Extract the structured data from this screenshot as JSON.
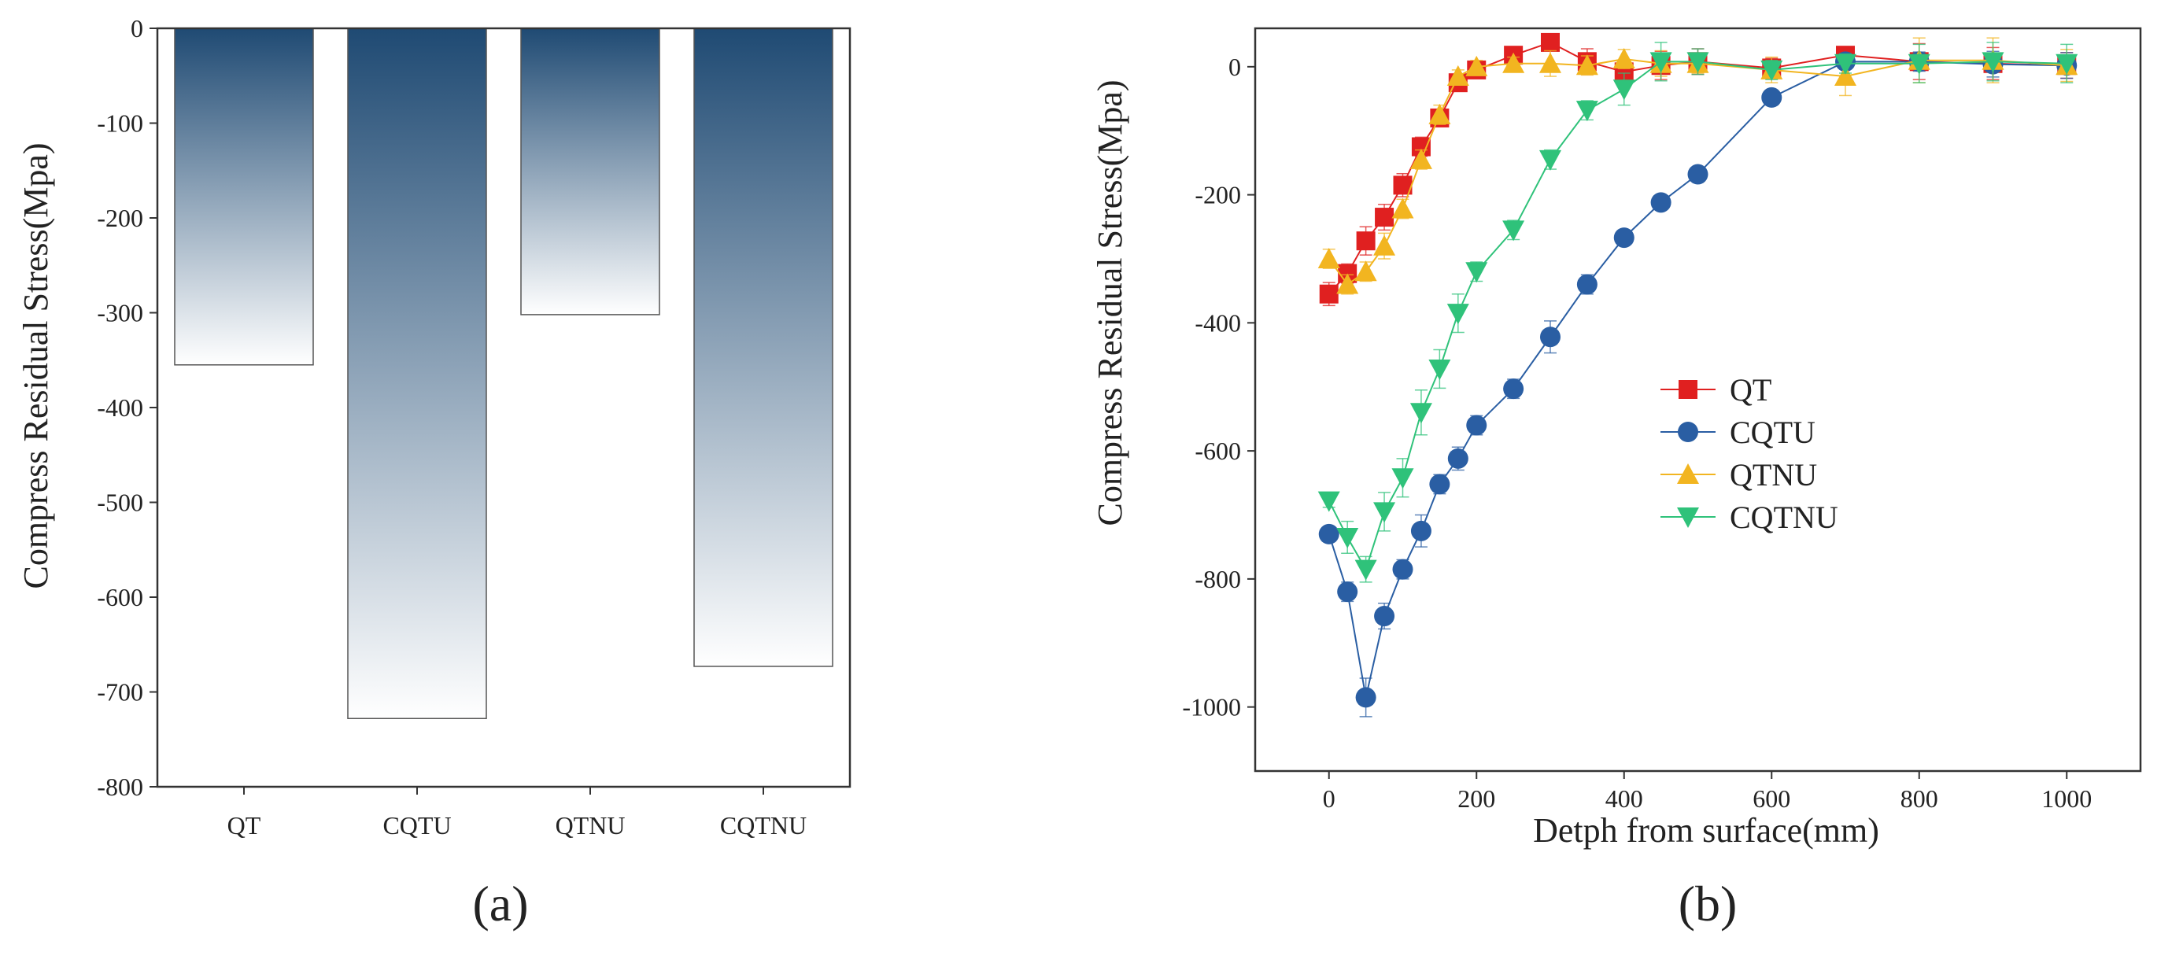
{
  "chart_data": [
    {
      "type": "bar",
      "panel_label": "(a)",
      "categories": [
        "QT",
        "CQTU",
        "QTNU",
        "CQTNU"
      ],
      "values": [
        -355,
        -728,
        -302,
        -673
      ],
      "ylabel": "Compress Residual Stress(Mpa)",
      "xlabel": "",
      "ylim": [
        -800,
        0
      ],
      "yticks": [
        0,
        -100,
        -200,
        -300,
        -400,
        -500,
        -600,
        -700,
        -800
      ],
      "fill_gradient": [
        "#1f4a73",
        "#ffffff"
      ],
      "grid": false
    },
    {
      "type": "line",
      "panel_label": "(b)",
      "xlabel": "Detph from surface(mm)",
      "ylabel": "Compress Residual Stress(Mpa)",
      "xlim": [
        -100,
        1100
      ],
      "ylim": [
        -1100,
        60
      ],
      "xticks": [
        0,
        200,
        400,
        600,
        800,
        1000
      ],
      "yticks": [
        0,
        -200,
        -400,
        -600,
        -800,
        -1000
      ],
      "grid": false,
      "legend_position": "center-right",
      "series": [
        {
          "name": "QT",
          "marker": "square",
          "color": "#e02020",
          "x": [
            0,
            25,
            50,
            75,
            100,
            125,
            150,
            175,
            200,
            250,
            300,
            350,
            400,
            450,
            500,
            600,
            700,
            800,
            900,
            1000
          ],
          "y": [
            -355,
            -323,
            -272,
            -235,
            -185,
            -125,
            -80,
            -25,
            -5,
            18,
            38,
            8,
            -8,
            2,
            8,
            -2,
            18,
            8,
            5,
            2
          ],
          "err": [
            18,
            15,
            22,
            20,
            18,
            15,
            12,
            12,
            8,
            8,
            10,
            20,
            15,
            22,
            20,
            15,
            12,
            28,
            25,
            20
          ]
        },
        {
          "name": "CQTU",
          "marker": "circle",
          "color": "#2a5ea3",
          "x": [
            0,
            25,
            50,
            75,
            100,
            125,
            150,
            175,
            200,
            250,
            300,
            350,
            400,
            450,
            500,
            600,
            700,
            800,
            900,
            1000
          ],
          "y": [
            -730,
            -820,
            -985,
            -858,
            -785,
            -725,
            -652,
            -612,
            -560,
            -503,
            -422,
            -340,
            -267,
            -212,
            -168,
            -48,
            8,
            8,
            4,
            2
          ],
          "err": [
            10,
            15,
            30,
            20,
            15,
            25,
            15,
            18,
            15,
            15,
            25,
            15,
            10,
            10,
            10,
            10,
            10,
            15,
            20,
            20
          ]
        },
        {
          "name": "QTNU",
          "marker": "triangle-up",
          "color": "#f2b520",
          "x": [
            0,
            25,
            50,
            75,
            100,
            125,
            150,
            175,
            200,
            250,
            300,
            350,
            400,
            450,
            500,
            600,
            700,
            800,
            900,
            1000
          ],
          "y": [
            -300,
            -340,
            -320,
            -280,
            -222,
            -145,
            -75,
            -15,
            0,
            5,
            5,
            2,
            12,
            5,
            5,
            -5,
            -15,
            10,
            10,
            2
          ],
          "err": [
            15,
            15,
            15,
            20,
            15,
            15,
            15,
            10,
            10,
            10,
            20,
            15,
            15,
            20,
            15,
            20,
            30,
            35,
            35,
            25
          ]
        },
        {
          "name": "CQTNU",
          "marker": "triangle-down",
          "color": "#2fc27a",
          "x": [
            0,
            25,
            50,
            75,
            100,
            125,
            150,
            175,
            200,
            250,
            300,
            350,
            400,
            450,
            500,
            600,
            700,
            800,
            900,
            1000
          ],
          "y": [
            -678,
            -735,
            -785,
            -695,
            -642,
            -540,
            -472,
            -385,
            -320,
            -255,
            -145,
            -68,
            -35,
            8,
            8,
            -5,
            5,
            5,
            8,
            5
          ],
          "err": [
            10,
            25,
            20,
            30,
            30,
            35,
            30,
            30,
            15,
            15,
            15,
            15,
            25,
            30,
            20,
            15,
            15,
            30,
            30,
            30
          ]
        }
      ]
    }
  ]
}
